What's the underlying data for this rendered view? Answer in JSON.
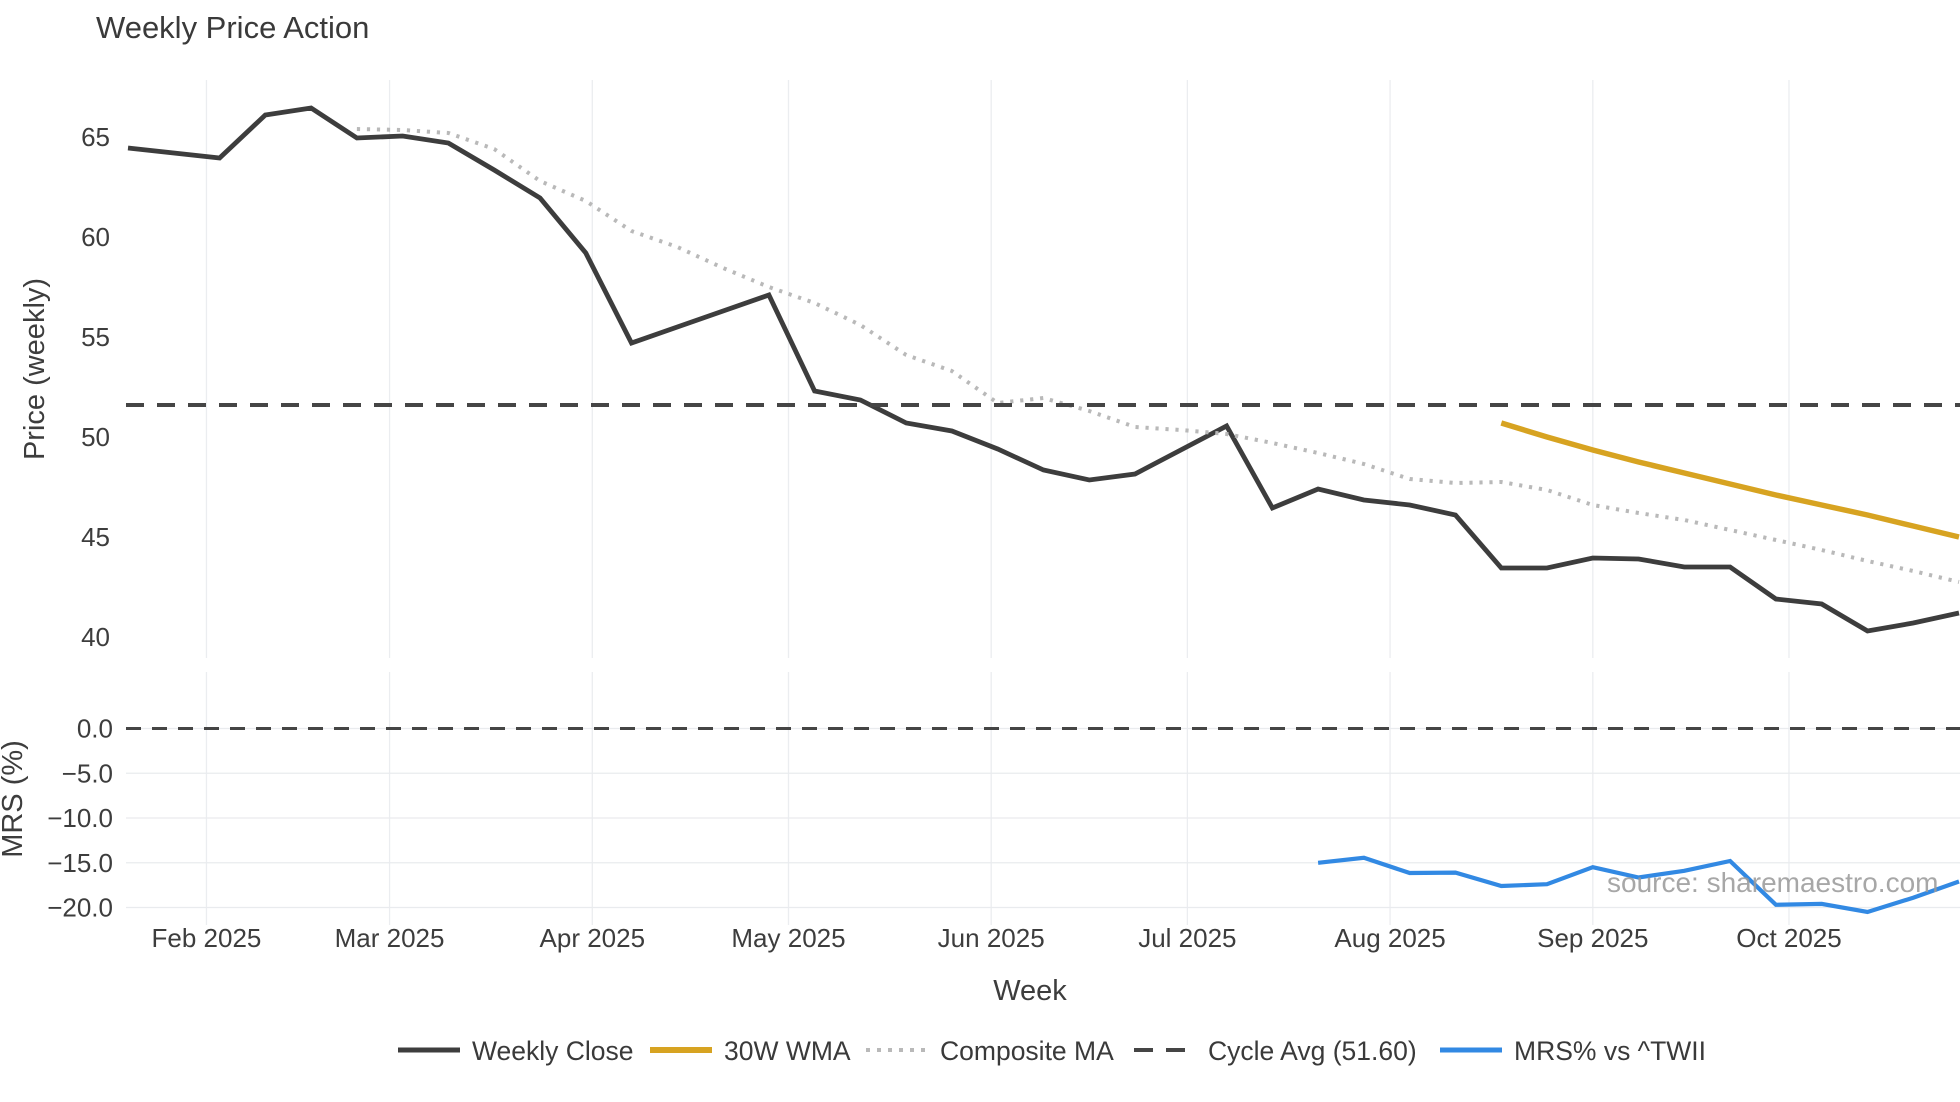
{
  "title": "Weekly Price Action",
  "source_note": "source: sharemaestro.com",
  "colors": {
    "weekly_close": "#3d3d3d",
    "wma_30w": "#d7a321",
    "composite_ma": "#b9b9b9",
    "cycle_avg": "#454545",
    "mrs": "#3289e3",
    "grid": "#ebedf0",
    "tick_text": "#3d3d3d",
    "title_text": "#3a3a3a",
    "source_text": "#9b9b9b",
    "background": "#ffffff"
  },
  "axes": {
    "xlabel": "Week",
    "main": {
      "ylabel": "Price (weekly)",
      "ytick_labels": [
        "65",
        "60",
        "55",
        "50",
        "45",
        "40"
      ],
      "ytick_values": [
        65,
        60,
        55,
        50,
        45,
        40
      ],
      "ylim": [
        39,
        67.9
      ],
      "grid": "vertical-months-only"
    },
    "mrs": {
      "ylabel": "MRS (%)",
      "ytick_labels": [
        "0.0",
        "−5.0",
        "−10.0",
        "−15.0",
        "−20.0"
      ],
      "ytick_values": [
        0,
        -5,
        -10,
        -15,
        -20
      ],
      "ylim": [
        -21.9,
        3.5
      ],
      "grid": "horizontal-and-vertical-months"
    },
    "month_ticks": [
      {
        "label": "Feb 2025",
        "week": 1.714
      },
      {
        "label": "Mar 2025",
        "week": 5.714
      },
      {
        "label": "Apr 2025",
        "week": 10.143
      },
      {
        "label": "May 2025",
        "week": 14.429
      },
      {
        "label": "Jun 2025",
        "week": 18.857
      },
      {
        "label": "Jul 2025",
        "week": 23.143
      },
      {
        "label": "Aug 2025",
        "week": 27.571
      },
      {
        "label": "Sep 2025",
        "week": 32.0
      },
      {
        "label": "Oct 2025",
        "week": 36.286
      }
    ]
  },
  "legend": [
    {
      "label": "Weekly Close",
      "swatch": {
        "style": "solid",
        "color": "#3d3d3d",
        "width": 5
      }
    },
    {
      "label": "30W WMA",
      "swatch": {
        "style": "solid",
        "color": "#d7a321",
        "width": 6
      }
    },
    {
      "label": "Composite MA",
      "swatch": {
        "style": "dotted",
        "color": "#b9b9b9",
        "width": 4
      }
    },
    {
      "label": "Cycle Avg (51.60)",
      "swatch": {
        "style": "dashed",
        "color": "#454545",
        "width": 4
      }
    },
    {
      "label": "MRS% vs ^TWII",
      "swatch": {
        "style": "solid",
        "color": "#3289e3",
        "width": 5
      }
    }
  ],
  "chart_data": [
    {
      "type": "line",
      "title": "Weekly Price Action",
      "xlabel": "Week",
      "ylabel": "Price (weekly)",
      "ylim": [
        39,
        67.9
      ],
      "grid": "vertical month gridlines, no spines",
      "legend_position": "bottom center",
      "x_dates": [
        "Jan 20",
        "Jan 27",
        "Feb 3",
        "Feb 10",
        "Feb 17",
        "Feb 24",
        "Mar 3",
        "Mar 10",
        "Mar 17",
        "Mar 24",
        "Mar 31",
        "Apr 7",
        "Apr 14",
        "Apr 21",
        "Apr 28",
        "May 5",
        "May 12",
        "May 19",
        "May 26",
        "Jun 2",
        "Jun 9",
        "Jun 16",
        "Jun 23",
        "Jun 30",
        "Jul 7",
        "Jul 14",
        "Jul 21",
        "Jul 28",
        "Aug 4",
        "Aug 11",
        "Aug 18",
        "Aug 25",
        "Sep 1",
        "Sep 8",
        "Sep 15",
        "Sep 22",
        "Sep 29",
        "Oct 6",
        "Oct 13",
        "Oct 20",
        "Oct 27"
      ],
      "series": [
        {
          "name": "Weekly Close",
          "style": "solid",
          "color": "#3d3d3d",
          "values": [
            64.45,
            64.2,
            63.95,
            66.1,
            66.45,
            64.95,
            65.05,
            64.7,
            63.35,
            61.95,
            59.2,
            54.7,
            55.5,
            56.3,
            57.1,
            52.3,
            51.85,
            50.7,
            50.3,
            49.4,
            48.35,
            47.85,
            48.15,
            49.35,
            50.55,
            46.45,
            47.4,
            46.85,
            46.6,
            46.1,
            43.45,
            43.45,
            43.95,
            43.9,
            43.5,
            43.5,
            41.9,
            41.65,
            40.3,
            40.7,
            41.2
          ]
        },
        {
          "name": "30W WMA",
          "style": "solid",
          "color": "#d7a321",
          "values": [
            null,
            null,
            null,
            null,
            null,
            null,
            null,
            null,
            null,
            null,
            null,
            null,
            null,
            null,
            null,
            null,
            null,
            null,
            null,
            null,
            null,
            null,
            null,
            null,
            null,
            null,
            null,
            null,
            null,
            null,
            50.7,
            50.0,
            49.35,
            48.75,
            48.2,
            47.65,
            47.1,
            46.6,
            46.1,
            45.55,
            45.0
          ]
        },
        {
          "name": "Composite MA",
          "style": "dotted",
          "color": "#b9b9b9",
          "values": [
            null,
            null,
            null,
            null,
            null,
            65.4,
            65.35,
            65.2,
            64.4,
            62.8,
            61.8,
            60.3,
            59.5,
            58.45,
            57.5,
            56.7,
            55.6,
            54.1,
            53.3,
            51.7,
            51.95,
            51.3,
            50.5,
            50.35,
            50.15,
            49.7,
            49.2,
            48.65,
            47.9,
            47.7,
            47.75,
            47.35,
            46.6,
            46.2,
            45.85,
            45.35,
            44.85,
            44.35,
            43.8,
            43.3,
            42.75
          ]
        },
        {
          "name": "Cycle Avg (51.60)",
          "style": "dashed",
          "color": "#454545",
          "hline": 51.6
        }
      ]
    },
    {
      "type": "line",
      "title": "",
      "xlabel": "Week",
      "ylabel": "MRS (%)",
      "ylim": [
        -21.9,
        3.5
      ],
      "grid": "horizontal gridlines at ticks plus vertical month gridlines",
      "series": [
        {
          "name": "MRS% vs ^TWII",
          "style": "solid",
          "color": "#3289e3",
          "values": [
            null,
            null,
            null,
            null,
            null,
            null,
            null,
            null,
            null,
            null,
            null,
            null,
            null,
            null,
            null,
            null,
            null,
            null,
            null,
            null,
            null,
            null,
            null,
            null,
            null,
            null,
            -15.0,
            -14.45,
            -16.15,
            -16.1,
            -17.6,
            -17.4,
            -15.5,
            -16.65,
            -15.9,
            -14.8,
            -19.7,
            -19.6,
            -20.5,
            -18.9,
            -17.1
          ]
        },
        {
          "name": "Zero line",
          "style": "dashed",
          "color": "#454545",
          "hline": 0.0
        }
      ]
    }
  ]
}
